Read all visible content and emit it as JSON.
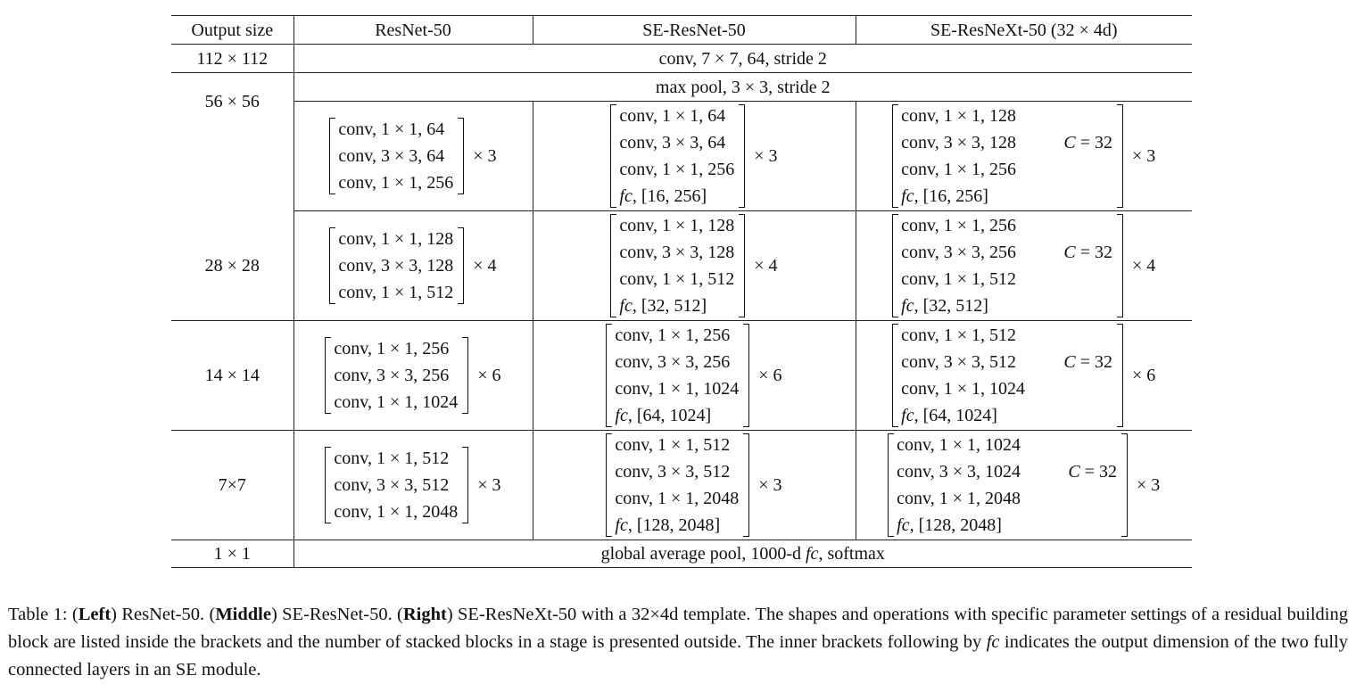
{
  "header": {
    "col0": "Output size",
    "col1": "ResNet-50",
    "col2": "SE-ResNet-50",
    "col3": "SE-ResNeXt-50 (32 × 4d)"
  },
  "row_conv1": {
    "size": "112 × 112",
    "layer": "conv, 7 × 7, 64, stride 2"
  },
  "row_pool": {
    "size": "56 × 56",
    "layer": "max pool, 3 × 3, stride 2"
  },
  "stages": [
    {
      "size": "",
      "resnet": [
        "conv, 1 × 1, 64",
        "conv, 3 × 3, 64",
        "conv, 1 × 1, 256"
      ],
      "resnet_mult": "× 3",
      "se": [
        "conv, 1 × 1, 64",
        "conv, 3 × 3, 64",
        "conv, 1 × 1, 256",
        "fc, [16, 256]"
      ],
      "se_mult": "× 3",
      "sex": [
        "conv, 1 × 1, 128",
        "conv, 3 × 3, 128",
        "conv, 1 × 1, 256",
        "fc, [16, 256]"
      ],
      "sex_c": "C = 32",
      "sex_mult": "× 3"
    },
    {
      "size": "28 × 28",
      "resnet": [
        "conv, 1 × 1, 128",
        "conv, 3 × 3, 128",
        "conv, 1 × 1, 512"
      ],
      "resnet_mult": "× 4",
      "se": [
        "conv, 1 × 1, 128",
        "conv, 3 × 3, 128",
        "conv, 1 × 1, 512",
        "fc, [32, 512]"
      ],
      "se_mult": "× 4",
      "sex": [
        "conv, 1 × 1, 256",
        "conv, 3 × 3, 256",
        "conv, 1 × 1, 512",
        "fc, [32, 512]"
      ],
      "sex_c": "C = 32",
      "sex_mult": "× 4"
    },
    {
      "size": "14 × 14",
      "resnet": [
        "conv, 1 × 1, 256",
        "conv, 3 × 3, 256",
        "conv, 1 × 1, 1024"
      ],
      "resnet_mult": "× 6",
      "se": [
        "conv, 1 × 1, 256",
        "conv, 3 × 3, 256",
        "conv, 1 × 1, 1024",
        "fc, [64, 1024]"
      ],
      "se_mult": "× 6",
      "sex": [
        "conv, 1 × 1, 512",
        "conv, 3 × 3, 512",
        "conv, 1 × 1, 1024",
        "fc, [64, 1024]"
      ],
      "sex_c": "C = 32",
      "sex_mult": "× 6"
    },
    {
      "size": "7×7",
      "resnet": [
        "conv, 1 × 1, 512",
        "conv, 3 × 3, 512",
        "conv, 1 × 1, 2048"
      ],
      "resnet_mult": "× 3",
      "se": [
        "conv, 1 × 1, 512",
        "conv, 3 × 3, 512",
        "conv, 1 × 1, 2048",
        "fc, [128, 2048]"
      ],
      "se_mult": "× 3",
      "sex": [
        "conv, 1 × 1, 1024",
        "conv, 3 × 3, 1024",
        "conv, 1 × 1, 2048",
        "fc, [128, 2048]"
      ],
      "sex_c": "C = 32",
      "sex_mult": "× 3"
    }
  ],
  "row_final": {
    "size": "1 × 1",
    "layer": "global average pool, 1000-d fc, softmax"
  },
  "caption": {
    "label": "Table 1: (",
    "left": "Left",
    "t1": ") ResNet-50. (",
    "middle": "Middle",
    "t2": ") SE-ResNet-50. (",
    "right": "Right",
    "t3": ") SE-ResNeXt-50 with a 32×4d template. The shapes and operations with specific parameter settings of a residual building block are listed inside the brackets and the number of stacked blocks in a stage is presented outside. The inner brackets following by ",
    "fc": "fc",
    "t4": " indicates the output dimension of the two fully connected layers in an SE module."
  }
}
